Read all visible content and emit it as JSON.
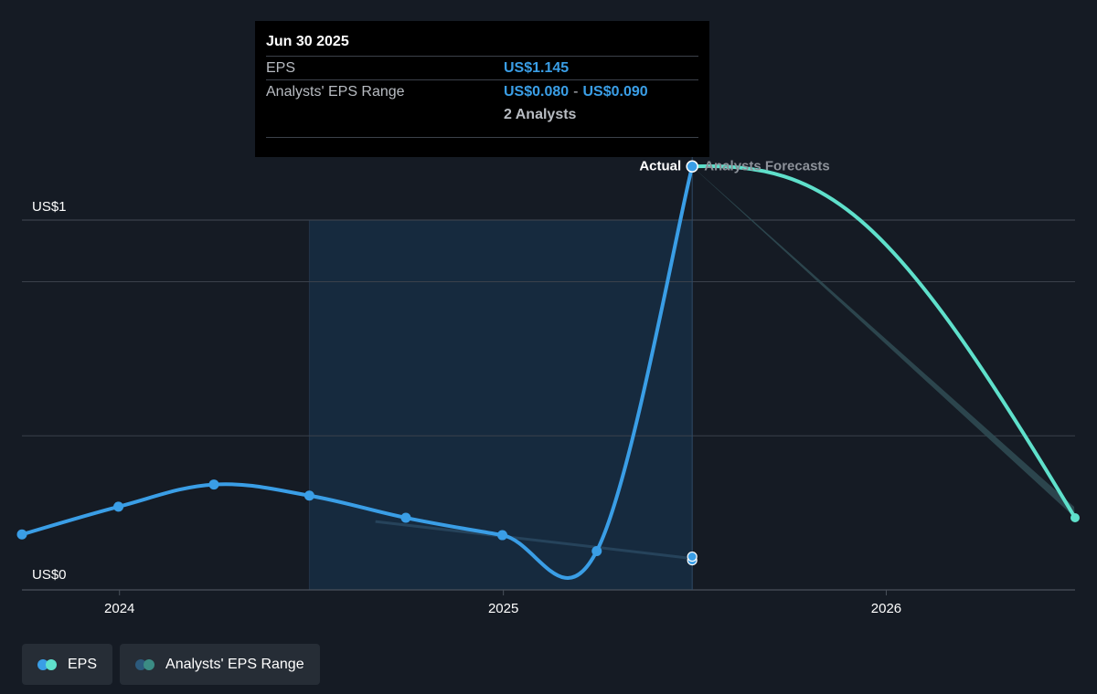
{
  "tooltip": {
    "date": "Jun 30 2025",
    "eps_label": "EPS",
    "eps_value": "US$1.145",
    "range_label": "Analysts' EPS Range",
    "range_low": "US$0.080",
    "range_sep": "-",
    "range_high": "US$0.090",
    "analysts": "2 Analysts"
  },
  "legend": {
    "eps_label": "EPS",
    "range_label": "Analysts' EPS Range"
  },
  "colors": {
    "background": "#151b24",
    "eps_actual": "#3a9ee6",
    "eps_forecast": "#5fe0cb",
    "range_band": "#2f4a52",
    "past_shade": "#162a3e",
    "grid": "#3a414b",
    "text": "#ffffff",
    "muted_text": "#8c9199"
  },
  "chart_data": {
    "type": "line",
    "title": "",
    "x_axis": {
      "ticks": [
        "2024",
        "2025",
        "2026"
      ],
      "range": [
        "2023-09-30",
        "2026-06-30"
      ]
    },
    "y_axis": {
      "tick_labels": [
        "US$0",
        "US$1"
      ],
      "range": [
        0,
        1.2
      ],
      "grid": true
    },
    "annotations": [
      "Actual",
      "Analysts Forecasts"
    ],
    "series": [
      {
        "name": "EPS",
        "kind": "actual",
        "points": [
          {
            "x": "2023-09-30",
            "y": 0.15
          },
          {
            "x": "2023-12-31",
            "y": 0.225
          },
          {
            "x": "2024-03-31",
            "y": 0.285
          },
          {
            "x": "2024-06-30",
            "y": 0.255
          },
          {
            "x": "2024-09-30",
            "y": 0.195
          },
          {
            "x": "2024-12-31",
            "y": 0.148
          },
          {
            "x": "2025-03-31",
            "y": 0.105
          },
          {
            "x": "2025-06-30",
            "y": 1.145
          }
        ]
      },
      {
        "name": "EPS",
        "kind": "forecast",
        "points": [
          {
            "x": "2025-06-30",
            "y": 1.145
          },
          {
            "x": "2026-06-30",
            "y": 0.195
          }
        ]
      },
      {
        "name": "Analysts' EPS Range",
        "kind": "range",
        "points": [
          {
            "x": "2025-06-30",
            "low": 1.145,
            "high": 1.145
          },
          {
            "x": "2026-06-30",
            "low": 0.195,
            "high": 0.195
          }
        ]
      },
      {
        "name": "Analysts' EPS Range",
        "kind": "past-forecast",
        "points": [
          {
            "x": "2024-09-01",
            "y": 0.185
          },
          {
            "x": "2025-06-30",
            "y": 0.085
          }
        ],
        "end_markers": [
          0.08,
          0.09
        ]
      }
    ]
  }
}
